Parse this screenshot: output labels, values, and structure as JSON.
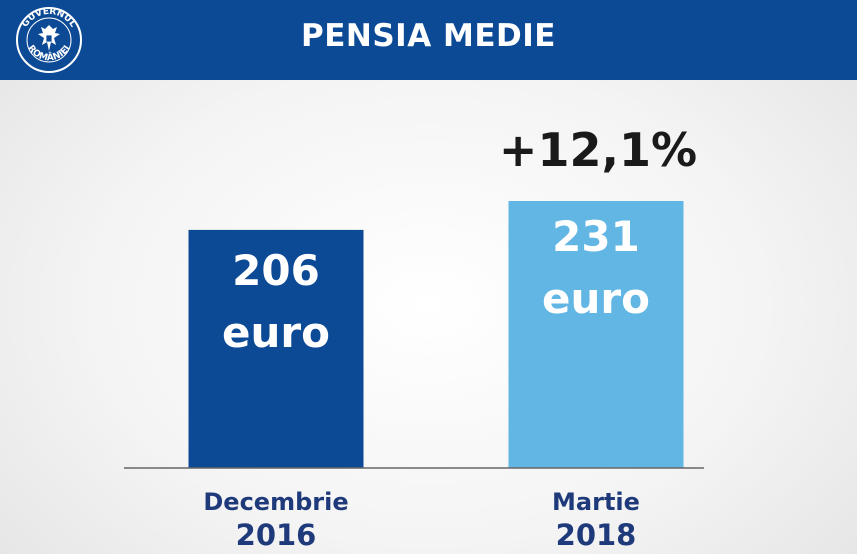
{
  "header": {
    "title": "PENSIA MEDIE",
    "logo_text": "GUVERNUL ROMÂNIEI",
    "background": "#0d4a96"
  },
  "chart_data": {
    "type": "bar",
    "categories": [
      "Decembrie 2016",
      "Martie 2018"
    ],
    "category_lines": [
      [
        "Decembrie",
        "2016"
      ],
      [
        "Martie",
        "2018"
      ]
    ],
    "values": [
      206,
      231
    ],
    "unit": "euro",
    "data_labels": [
      [
        "206",
        "euro"
      ],
      [
        "231",
        "euro"
      ]
    ],
    "annotation": "+12,1%",
    "colors": [
      "#0d4a96",
      "#62b6e3"
    ],
    "label_color": "#1f3a7a",
    "ylim": [
      0,
      231
    ],
    "grid": false,
    "legend": "none"
  }
}
